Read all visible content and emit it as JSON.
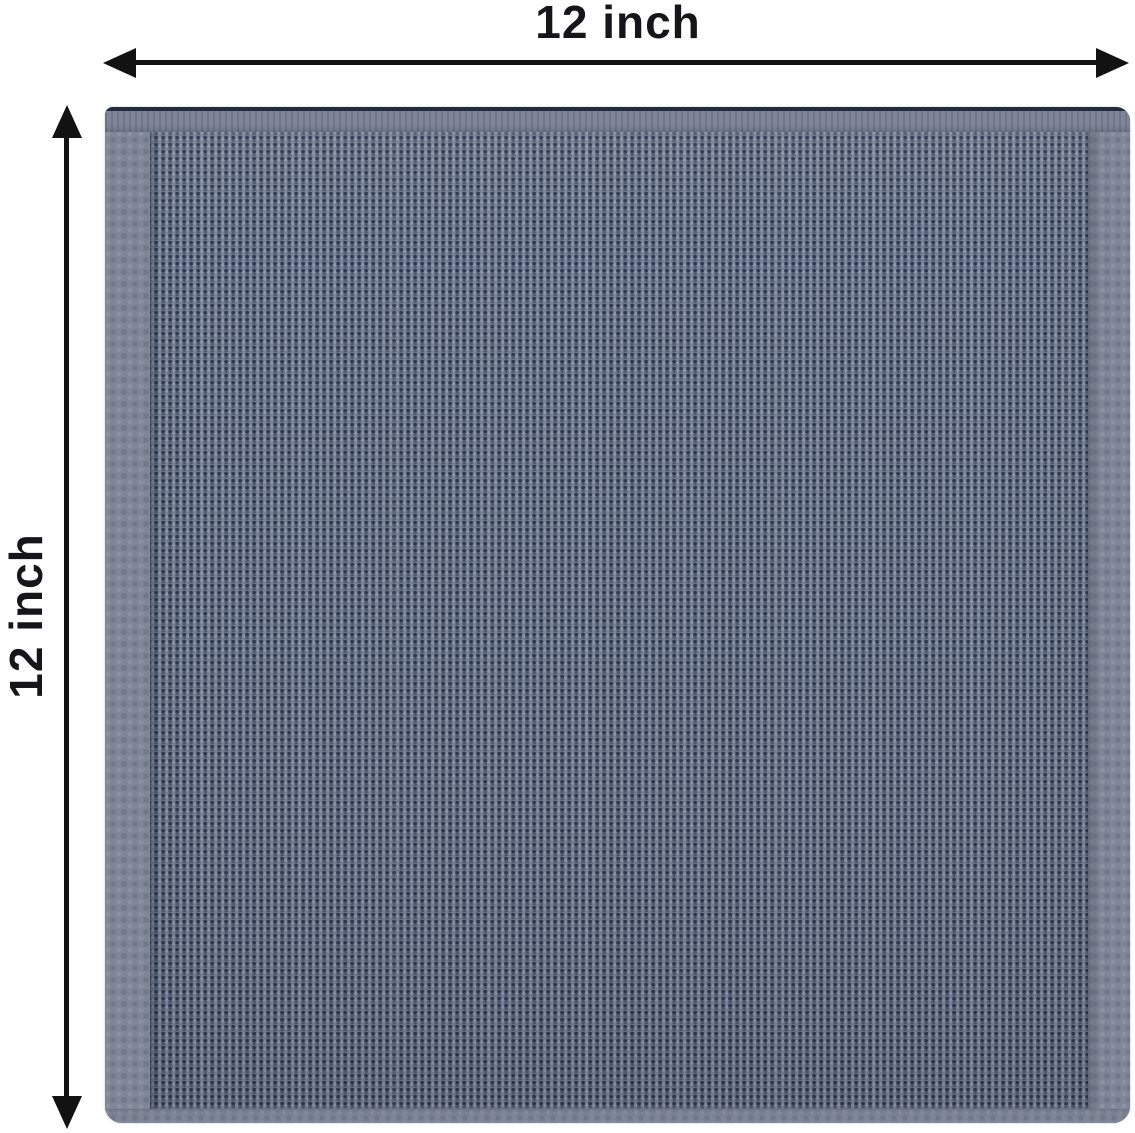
{
  "figure": {
    "top_dimension_label": "12 inch",
    "left_dimension_label": "12 inch"
  },
  "colors": {
    "background": "#ffffff",
    "arrow": "#121212",
    "label_text": "#16161a",
    "fabric_base": "#7a8497",
    "fabric_dot": "#2d3750",
    "fabric_selvage": "#7e8697",
    "fabric_hem_dark": "#222c40"
  }
}
